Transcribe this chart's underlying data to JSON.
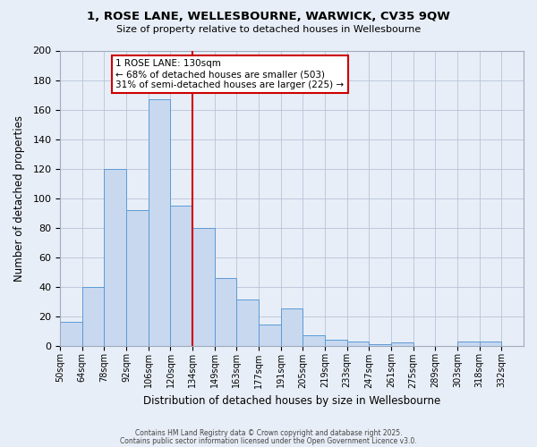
{
  "title": "1, ROSE LANE, WELLESBOURNE, WARWICK, CV35 9QW",
  "subtitle": "Size of property relative to detached houses in Wellesbourne",
  "xlabel": "Distribution of detached houses by size in Wellesbourne",
  "ylabel": "Number of detached properties",
  "bin_labels": [
    "50sqm",
    "64sqm",
    "78sqm",
    "92sqm",
    "106sqm",
    "120sqm",
    "134sqm",
    "149sqm",
    "163sqm",
    "177sqm",
    "191sqm",
    "205sqm",
    "219sqm",
    "233sqm",
    "247sqm",
    "261sqm",
    "275sqm",
    "289sqm",
    "303sqm",
    "318sqm",
    "332sqm"
  ],
  "heights": [
    16,
    40,
    120,
    92,
    167,
    95,
    80,
    46,
    31,
    14,
    25,
    7,
    4,
    3,
    1,
    2,
    0,
    0,
    3,
    3,
    0
  ],
  "bar_facecolor": "#c8d8ef",
  "bar_edgecolor": "#5b9bd5",
  "background_color": "#e8eef7",
  "vline_position": 6.0,
  "vline_color": "#cc0000",
  "annotation_title": "1 ROSE LANE: 130sqm",
  "annotation_line1": "← 68% of detached houses are smaller (503)",
  "annotation_line2": "31% of semi-detached houses are larger (225) →",
  "annotation_box_facecolor": "#ffffff",
  "annotation_box_edgecolor": "#cc0000",
  "ylim": [
    0,
    200
  ],
  "yticks": [
    0,
    20,
    40,
    60,
    80,
    100,
    120,
    140,
    160,
    180,
    200
  ],
  "footer1": "Contains HM Land Registry data © Crown copyright and database right 2025.",
  "footer2": "Contains public sector information licensed under the Open Government Licence v3.0."
}
